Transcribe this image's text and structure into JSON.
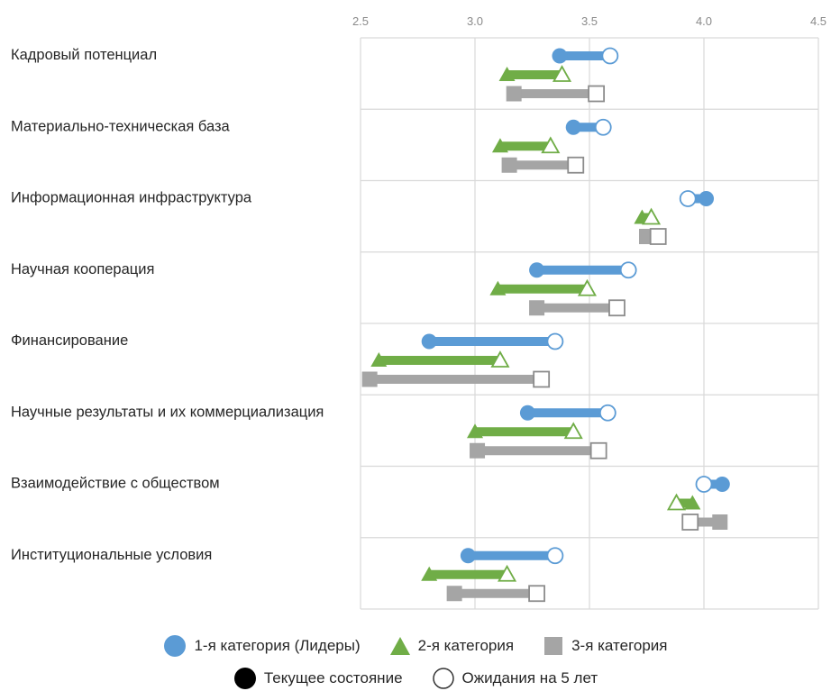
{
  "chart_data": {
    "type": "dumbbell",
    "title": "",
    "xlim": [
      2.5,
      4.5
    ],
    "x_ticks": [
      "2.5",
      "3.0",
      "3.5",
      "4.0",
      "4.5"
    ],
    "categories": [
      "Кадровый потенциал",
      "Материально-техническая база",
      "Информационная инфраструктура",
      "Научная кооперация",
      "Финансирование",
      "Научные результаты и их коммерциализация",
      "Взаимодействие с обществом",
      "Институциональные условия"
    ],
    "series": [
      {
        "name": "1-я категория (Лидеры)",
        "color": "#5b9bd5",
        "marker": "circle",
        "current": [
          3.37,
          3.43,
          4.01,
          3.27,
          2.8,
          3.23,
          4.08,
          2.97
        ],
        "expected": [
          3.59,
          3.56,
          3.93,
          3.67,
          3.35,
          3.58,
          4.0,
          3.35
        ]
      },
      {
        "name": "2-я категория",
        "color": "#70ad47",
        "marker": "triangle",
        "current": [
          3.14,
          3.11,
          3.73,
          3.1,
          2.58,
          3.0,
          3.95,
          2.8
        ],
        "expected": [
          3.38,
          3.33,
          3.77,
          3.49,
          3.11,
          3.43,
          3.88,
          3.14
        ]
      },
      {
        "name": "3-я категория",
        "color": "#a5a5a5",
        "marker": "square",
        "current": [
          3.17,
          3.15,
          3.75,
          3.27,
          2.54,
          3.01,
          4.07,
          2.91
        ],
        "expected": [
          3.53,
          3.44,
          3.8,
          3.62,
          3.29,
          3.54,
          3.94,
          3.27
        ]
      }
    ]
  },
  "legend": {
    "cat1": "1-я категория (Лидеры)",
    "cat2": "2-я категория",
    "cat3": "3-я категория",
    "current": "Текущее состояние",
    "expected": "Ожидания на 5 лет"
  }
}
